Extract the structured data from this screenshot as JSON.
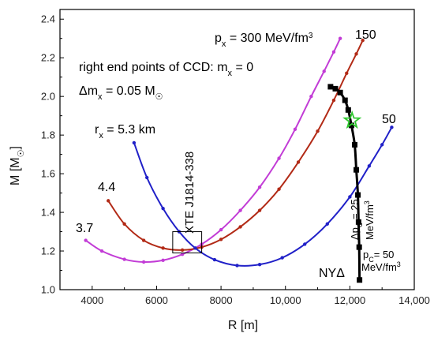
{
  "chart_data": {
    "type": "line",
    "xlabel": "R [m]",
    "ylabel_main": "M [M",
    "ylabel_sub": "☉",
    "ylabel_end": "]",
    "xlim": [
      3000,
      14000
    ],
    "ylim": [
      1.0,
      2.45
    ],
    "xticks": [
      4000,
      6000,
      8000,
      10000,
      12000,
      14000
    ],
    "xtick_labels": [
      "4000",
      "6000",
      "8000",
      "10,000",
      "12,000",
      "14,000"
    ],
    "yticks": [
      1.0,
      1.2,
      1.4,
      1.6,
      1.8,
      2.0,
      2.2,
      2.4
    ],
    "ytick_labels": [
      "1.0",
      "1.2",
      "1.4",
      "1.6",
      "1.8",
      "2.0",
      "2.2",
      "2.4"
    ],
    "colors": {
      "magenta": "#c23cd6",
      "darkred": "#b22a16",
      "blue": "#2020c8",
      "black": "#000000",
      "star": "#2ec82e"
    },
    "series": [
      {
        "key": "px300",
        "color": "magenta",
        "marker": "dot",
        "x": [
          3800,
          4300,
          5000,
          5600,
          6200,
          6800,
          7400,
          8000,
          8600,
          9200,
          9800,
          10300,
          10800,
          11200,
          11500,
          11700
        ],
        "y": [
          1.255,
          1.2,
          1.157,
          1.143,
          1.152,
          1.183,
          1.235,
          1.31,
          1.41,
          1.53,
          1.68,
          1.83,
          2.0,
          2.13,
          2.23,
          2.3
        ]
      },
      {
        "key": "px150",
        "color": "darkred",
        "marker": "dot",
        "x": [
          4500,
          5000,
          5600,
          6200,
          6800,
          7400,
          8000,
          8600,
          9200,
          9800,
          10400,
          11000,
          11500,
          11900,
          12200,
          12400
        ],
        "y": [
          1.46,
          1.34,
          1.255,
          1.215,
          1.205,
          1.22,
          1.26,
          1.325,
          1.41,
          1.52,
          1.66,
          1.82,
          1.98,
          2.12,
          2.22,
          2.29
        ]
      },
      {
        "key": "px50",
        "color": "blue",
        "marker": "dot",
        "x": [
          5300,
          5700,
          6200,
          6700,
          7200,
          7800,
          8500,
          9200,
          9900,
          10600,
          11300,
          12000,
          12600,
          13000,
          13300
        ],
        "y": [
          1.76,
          1.58,
          1.42,
          1.3,
          1.215,
          1.155,
          1.125,
          1.13,
          1.165,
          1.235,
          1.34,
          1.48,
          1.64,
          1.75,
          1.84
        ]
      },
      {
        "key": "NYD",
        "color": "black",
        "marker": "square",
        "x": [
          11400,
          11550,
          11700,
          11850,
          11950,
          12050,
          12150,
          12200,
          12250,
          12270,
          12290,
          12300
        ],
        "y": [
          2.05,
          2.04,
          2.02,
          1.98,
          1.93,
          1.85,
          1.75,
          1.62,
          1.49,
          1.35,
          1.22,
          1.05
        ]
      }
    ],
    "star": {
      "x": 12070,
      "y": 1.875
    },
    "box": {
      "x0": 6500,
      "x1": 7400,
      "y0": 1.19,
      "y1": 1.3
    },
    "labels": {
      "px300_a": "p",
      "px300_b": "x",
      "px300_c": " = 300 MeV/fm",
      "px300_d": "3",
      "px150": "150",
      "px50": "50",
      "rx_a": "r",
      "rx_b": "x",
      "rx_c": " = 5.3 km",
      "r44": "4.4",
      "r37": "3.7",
      "ccd_a": "right end points of CCD: m",
      "ccd_b": "x",
      "ccd_c": " = 0",
      "dm_a": "Δm",
      "dm_b": "x",
      "dm_c": " = 0.05 M",
      "dm_d": "☉",
      "xte": "XTE J1814-338",
      "nyd": "NYΔ",
      "dp_a": "Δp",
      "dp_b": "C",
      "dp_c": " = 25",
      "dp_d": "MeV/fm",
      "dp_e": "3",
      "pc_a": "p",
      "pc_b": "C",
      "pc_c": "= 50",
      "pc_d": "MeV/fm",
      "pc_e": "3"
    }
  }
}
